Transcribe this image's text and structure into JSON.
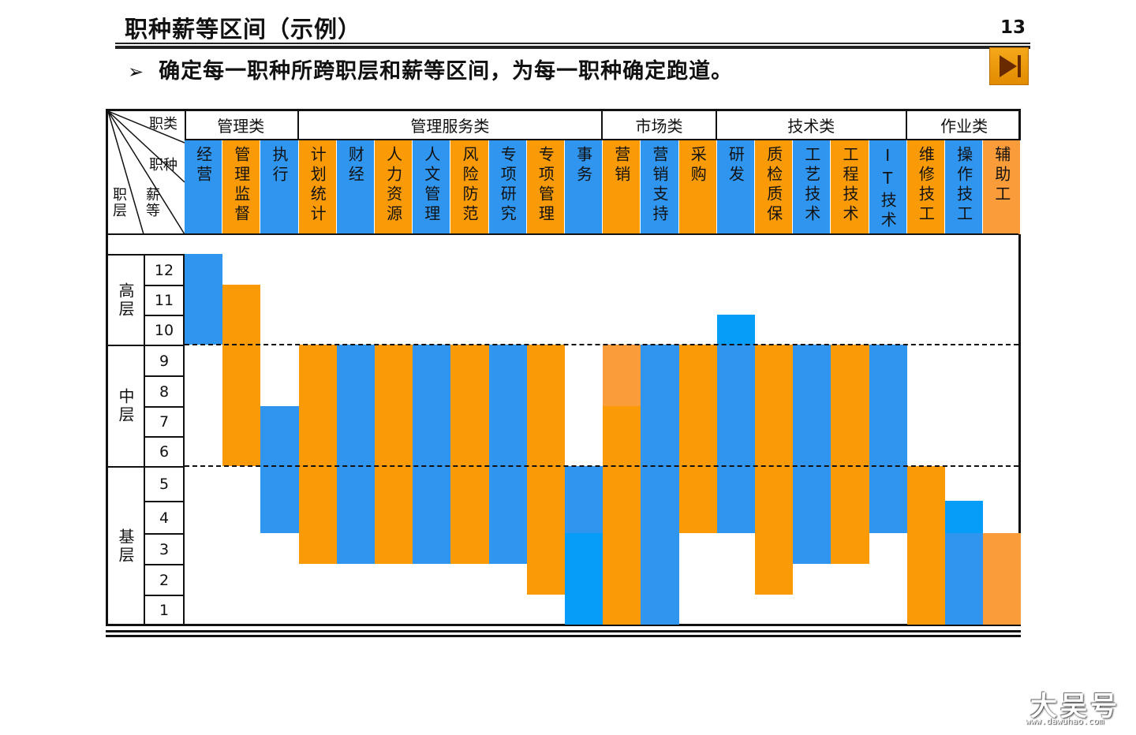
{
  "slide": {
    "title": "职种薪等区间（示例）",
    "page_number": "13",
    "subtitle": "确定每一职种所跨职层和薪等区间，为每一职种确定跑道。",
    "bullet": "➢"
  },
  "colors": {
    "blue": "#2f95ef",
    "orange": "#fa9a07",
    "light_orange": "#fb9c3a",
    "bright_blue": "#069df8"
  },
  "table": {
    "header_labels": {
      "category": "职类",
      "job": "职种",
      "grade": "薪等",
      "level": "职层"
    },
    "categories": [
      {
        "name": "管理类",
        "span": 3
      },
      {
        "name": "管理服务类",
        "span": 8
      },
      {
        "name": "市场类",
        "span": 3
      },
      {
        "name": "技术类",
        "span": 5
      },
      {
        "name": "作业类",
        "span": 3
      }
    ],
    "jobs": [
      {
        "name": "经营",
        "color": "blue",
        "min": 10,
        "max": 12
      },
      {
        "name": "管理监督",
        "color": "orange",
        "min": 6,
        "max": 11
      },
      {
        "name": "执行",
        "color": "blue",
        "min": 4,
        "max": 7
      },
      {
        "name": "计划统计",
        "color": "orange",
        "min": 3,
        "max": 9
      },
      {
        "name": "财经",
        "color": "blue",
        "min": 3,
        "max": 9
      },
      {
        "name": "人力资源",
        "color": "orange",
        "min": 3,
        "max": 9
      },
      {
        "name": "人文管理",
        "color": "blue",
        "min": 3,
        "max": 9
      },
      {
        "name": "风险防范",
        "color": "orange",
        "min": 3,
        "max": 9
      },
      {
        "name": "专项研究",
        "color": "blue",
        "min": 3,
        "max": 9
      },
      {
        "name": "专项管理",
        "color": "orange",
        "min": 2,
        "max": 9
      },
      {
        "name": "事务",
        "color": "blue",
        "min": 1,
        "max": 5,
        "accent_color": "bright_blue",
        "accent_min": 1,
        "accent_max": 3
      },
      {
        "name": "营销",
        "color": "orange",
        "min": 1,
        "max": 9,
        "accent_color": "light_orange",
        "accent_min": 8,
        "accent_max": 9
      },
      {
        "name": "营销支持",
        "color": "blue",
        "min": 1,
        "max": 9
      },
      {
        "name": "采购",
        "color": "orange",
        "min": 4,
        "max": 9
      },
      {
        "name": "研发",
        "color": "blue",
        "min": 4,
        "max": 10,
        "accent_color": "bright_blue",
        "accent_min": 10,
        "accent_max": 10
      },
      {
        "name": "质检质保",
        "color": "orange",
        "min": 2,
        "max": 9
      },
      {
        "name": "工艺技术",
        "color": "blue",
        "min": 3,
        "max": 9
      },
      {
        "name": "工程技术",
        "color": "orange",
        "min": 3,
        "max": 9
      },
      {
        "name": "IT技术",
        "color": "blue",
        "min": 4,
        "max": 9
      },
      {
        "name": "维修技工",
        "color": "orange",
        "min": 1,
        "max": 5
      },
      {
        "name": "操作技工",
        "color": "blue",
        "min": 1,
        "max": 4,
        "accent_color": "bright_blue",
        "accent_min": 4,
        "accent_max": 4
      },
      {
        "name": "辅助工",
        "color": "light_orange",
        "min": 1,
        "max": 3
      }
    ],
    "levels": [
      {
        "name": "高层",
        "grades": [
          12,
          11,
          10
        ]
      },
      {
        "name": "中层",
        "grades": [
          9,
          8,
          7,
          6
        ]
      },
      {
        "name": "基层",
        "grades": [
          5,
          4,
          3,
          2,
          1
        ]
      }
    ],
    "grades": [
      "12",
      "11",
      "10",
      "9",
      "8",
      "7",
      "6",
      "5",
      "4",
      "3",
      "2",
      "1"
    ]
  },
  "watermark": {
    "text": "大吴号",
    "url": "www.dawuhao.com"
  },
  "icons": {
    "next": "next-slide-icon"
  }
}
